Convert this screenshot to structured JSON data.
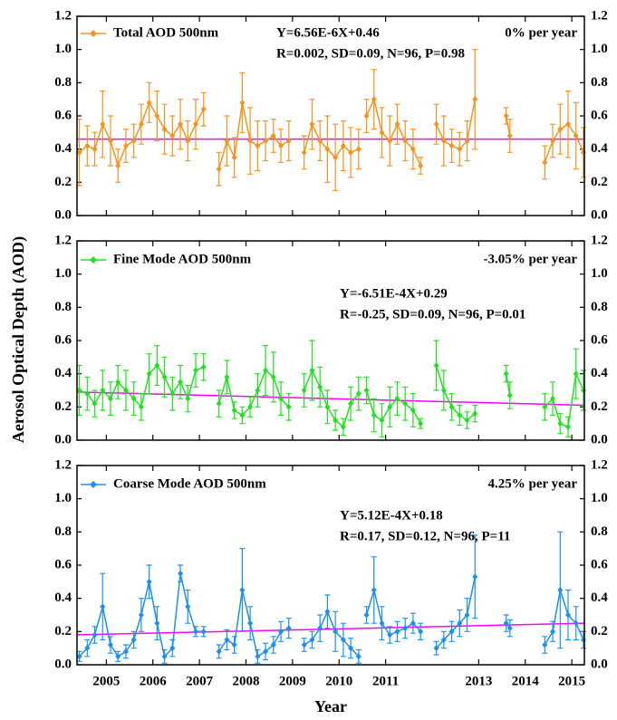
{
  "chart_data": [
    {
      "type": "line",
      "series": [
        {
          "name": "Total AOD 500nm",
          "color": "#f7931e",
          "x": [
            2004.92,
            2005.09,
            2005.25,
            2005.42,
            2005.59,
            2005.75,
            2005.92,
            2006.09,
            2006.25,
            2006.42,
            2006.59,
            2006.75,
            2006.92,
            2007.09,
            2007.25,
            2007.42,
            2007.59,
            2007.75,
            2007.92,
            2008.09,
            2008.25,
            2008.42,
            2008.59,
            2008.75,
            2008.92,
            2009.09,
            2009.25,
            2009.42,
            2009.59,
            2009.75,
            2009.92,
            2010.09,
            2010.25,
            2010.42,
            2010.59,
            2010.75,
            2010.92,
            2011.0,
            2011.09,
            2011.25,
            2011.42,
            2011.59,
            2011.75,
            2011.92,
            2012.09,
            2012.25,
            2012.42,
            2012.59,
            2012.75,
            2012.92,
            2013.09,
            2013.25,
            2013.42,
            2013.75,
            2014.09,
            2014.17,
            2014.5,
            2014.92,
            2015.09,
            2015.25,
            2015.42,
            2015.59,
            2015.75
          ],
          "values": [
            0.38,
            0.42,
            0.4,
            0.55,
            0.45,
            0.3,
            0.42,
            0.45,
            0.55,
            0.68,
            0.6,
            0.52,
            0.48,
            0.55,
            0.45,
            0.55,
            0.64,
            null,
            0.28,
            0.45,
            0.35,
            0.68,
            0.45,
            0.42,
            0.45,
            0.48,
            0.42,
            0.45,
            null,
            0.38,
            0.55,
            0.45,
            0.4,
            0.35,
            0.42,
            0.38,
            0.4,
            null,
            0.6,
            0.7,
            0.5,
            0.45,
            0.55,
            0.45,
            0.4,
            0.3,
            null,
            0.55,
            0.45,
            0.42,
            0.4,
            0.45,
            0.7,
            null,
            0.6,
            0.48,
            null,
            0.32,
            0.45,
            0.52,
            0.55,
            0.48,
            0.38
          ],
          "errors": [
            0.2,
            0.12,
            0.1,
            0.2,
            0.15,
            0.1,
            0.1,
            0.1,
            0.12,
            0.12,
            0.15,
            0.15,
            0.12,
            0.15,
            0.12,
            0.15,
            0.1,
            null,
            0.1,
            0.15,
            0.12,
            0.18,
            0.2,
            0.15,
            0.12,
            0.1,
            0.1,
            0.12,
            null,
            0.1,
            0.15,
            0.12,
            0.2,
            0.2,
            0.15,
            0.15,
            0.12,
            null,
            0.1,
            0.18,
            0.15,
            0.15,
            0.12,
            0.12,
            0.12,
            0.05,
            null,
            0.12,
            0.15,
            0.1,
            0.1,
            0.12,
            0.3,
            null,
            0.05,
            0.1,
            null,
            0.1,
            0.1,
            0.15,
            0.2,
            0.2,
            0.15
          ]
        }
      ],
      "trend": {
        "color": "#ff00ff",
        "x": [
          2004.87,
          2015.77
        ],
        "values": [
          0.46,
          0.46
        ]
      },
      "equation": "Y=6.56E-6X+0.46",
      "stats": "R=0.002, SD=0.09, N=96, P=0.98",
      "rate": "0% per year",
      "xlim": [
        2004.87,
        2015.77
      ],
      "ylim": [
        0,
        1.2
      ],
      "yticks": [
        {
          "value": 0,
          "label": "0.0"
        },
        0.2,
        0.4,
        0.6,
        0.8,
        {
          "value": 1,
          "label": "1.0"
        },
        1.2
      ]
    },
    {
      "type": "line",
      "ylabel": "Aerosol Optical Depth (AOD)",
      "series": [
        {
          "name": "Fine Mode AOD 500nm",
          "color": "#22e022",
          "x": [
            2004.92,
            2005.09,
            2005.25,
            2005.42,
            2005.59,
            2005.75,
            2005.92,
            2006.09,
            2006.25,
            2006.42,
            2006.59,
            2006.75,
            2006.92,
            2007.09,
            2007.25,
            2007.42,
            2007.59,
            2007.75,
            2007.92,
            2008.09,
            2008.25,
            2008.42,
            2008.59,
            2008.75,
            2008.92,
            2009.09,
            2009.25,
            2009.42,
            2009.59,
            2009.75,
            2009.92,
            2010.09,
            2010.25,
            2010.42,
            2010.59,
            2010.75,
            2010.92,
            2011.0,
            2011.09,
            2011.25,
            2011.42,
            2011.59,
            2011.75,
            2011.92,
            2012.09,
            2012.25,
            2012.42,
            2012.59,
            2012.75,
            2012.92,
            2013.09,
            2013.25,
            2013.42,
            2013.75,
            2014.09,
            2014.17,
            2014.5,
            2014.92,
            2015.09,
            2015.25,
            2015.42,
            2015.59,
            2015.75
          ],
          "values": [
            0.3,
            0.28,
            0.22,
            0.3,
            0.25,
            0.35,
            0.3,
            0.25,
            0.2,
            0.4,
            0.45,
            0.38,
            0.28,
            0.35,
            0.25,
            0.42,
            0.44,
            null,
            0.22,
            0.38,
            0.18,
            0.15,
            0.2,
            0.3,
            0.42,
            0.38,
            0.25,
            0.2,
            null,
            0.3,
            0.42,
            0.32,
            0.2,
            0.12,
            0.08,
            0.22,
            0.28,
            null,
            0.3,
            0.15,
            0.12,
            0.2,
            0.25,
            0.22,
            0.18,
            0.1,
            null,
            0.45,
            0.3,
            0.2,
            0.15,
            0.12,
            0.16,
            null,
            0.4,
            0.27,
            null,
            0.2,
            0.25,
            0.1,
            0.08,
            0.4,
            0.3
          ],
          "errors": [
            0.15,
            0.1,
            0.08,
            0.12,
            0.1,
            0.1,
            0.12,
            0.1,
            0.08,
            0.12,
            0.12,
            0.12,
            0.1,
            0.1,
            0.08,
            0.1,
            0.08,
            null,
            0.08,
            0.1,
            0.05,
            0.05,
            0.06,
            0.1,
            0.15,
            0.15,
            0.1,
            0.08,
            null,
            0.1,
            0.18,
            0.12,
            0.1,
            0.06,
            0.05,
            0.1,
            0.1,
            null,
            0.08,
            0.1,
            0.1,
            0.12,
            0.1,
            0.1,
            0.1,
            0.03,
            null,
            0.15,
            0.12,
            0.08,
            0.06,
            0.05,
            0.05,
            null,
            0.05,
            0.08,
            null,
            0.08,
            0.1,
            0.06,
            0.06,
            0.15,
            0.12
          ]
        }
      ],
      "trend": {
        "color": "#ff00ff",
        "x": [
          2004.87,
          2015.77
        ],
        "values": [
          0.29,
          0.21
        ]
      },
      "equation": "Y=-6.51E-4X+0.29",
      "stats": "R=-0.25, SD=0.09, N=96, P=0.01",
      "rate": "-3.05% per year",
      "xlim": [
        2004.87,
        2015.77
      ],
      "ylim": [
        0,
        1.2
      ],
      "yticks": [
        {
          "value": 0,
          "label": "0.0"
        },
        0.2,
        0.4,
        0.6,
        0.8,
        {
          "value": 1,
          "label": "1.0"
        },
        1.2
      ]
    },
    {
      "type": "line",
      "xlabel": "Year",
      "series": [
        {
          "name": "Coarse Mode AOD 500nm",
          "color": "#1e8fef",
          "x": [
            2004.92,
            2005.09,
            2005.25,
            2005.42,
            2005.59,
            2005.75,
            2005.92,
            2006.09,
            2006.25,
            2006.42,
            2006.59,
            2006.75,
            2006.92,
            2007.09,
            2007.25,
            2007.42,
            2007.59,
            2007.75,
            2007.92,
            2008.09,
            2008.25,
            2008.42,
            2008.59,
            2008.75,
            2008.92,
            2009.09,
            2009.25,
            2009.42,
            2009.59,
            2009.75,
            2009.92,
            2010.09,
            2010.25,
            2010.42,
            2010.59,
            2010.75,
            2010.92,
            2011.0,
            2011.09,
            2011.25,
            2011.42,
            2011.59,
            2011.75,
            2011.92,
            2012.09,
            2012.25,
            2012.42,
            2012.59,
            2012.75,
            2012.92,
            2013.09,
            2013.25,
            2013.42,
            2013.75,
            2014.09,
            2014.17,
            2014.5,
            2014.92,
            2015.09,
            2015.25,
            2015.42,
            2015.59,
            2015.75
          ],
          "values": [
            0.05,
            0.1,
            0.18,
            0.35,
            0.12,
            0.05,
            0.08,
            0.15,
            0.3,
            0.5,
            0.25,
            0.05,
            0.1,
            0.55,
            0.35,
            0.2,
            0.2,
            null,
            0.08,
            0.15,
            0.12,
            0.45,
            0.25,
            0.05,
            0.08,
            0.12,
            0.2,
            0.22,
            null,
            0.12,
            0.15,
            0.22,
            0.32,
            0.2,
            0.15,
            0.1,
            0.05,
            null,
            0.3,
            0.45,
            0.25,
            0.18,
            0.2,
            0.22,
            0.25,
            0.2,
            null,
            0.1,
            0.15,
            0.2,
            0.25,
            0.3,
            0.53,
            null,
            0.25,
            0.22,
            null,
            0.12,
            0.2,
            0.45,
            0.3,
            0.25,
            0.15
          ],
          "errors": [
            0.03,
            0.05,
            0.05,
            0.2,
            0.05,
            0.03,
            0.04,
            0.05,
            0.1,
            0.1,
            0.1,
            0.04,
            0.05,
            0.05,
            0.1,
            0.03,
            0.03,
            null,
            0.04,
            0.06,
            0.05,
            0.25,
            0.1,
            0.04,
            0.05,
            0.05,
            0.06,
            0.06,
            null,
            0.04,
            0.05,
            0.08,
            0.1,
            0.12,
            0.1,
            0.06,
            0.04,
            null,
            0.05,
            0.2,
            0.1,
            0.05,
            0.06,
            0.06,
            0.06,
            0.05,
            null,
            0.04,
            0.05,
            0.06,
            0.08,
            0.1,
            0.25,
            null,
            0.05,
            0.05,
            null,
            0.05,
            0.06,
            0.35,
            0.15,
            0.1,
            0.05
          ]
        }
      ],
      "trend": {
        "color": "#ff00ff",
        "x": [
          2004.87,
          2015.77
        ],
        "values": [
          0.18,
          0.25
        ]
      },
      "equation": "Y=5.12E-4X+0.18",
      "stats": "R=0.17, SD=0.12, N=96, P=11",
      "rate": "4.25% per year",
      "xlim": [
        2004.87,
        2015.77
      ],
      "ylim": [
        0,
        1.2
      ],
      "yticks": [
        {
          "value": 0,
          "label": "0.0"
        },
        0.2,
        0.4,
        0.6,
        0.8,
        {
          "value": 1,
          "label": "1.0"
        },
        1.2
      ],
      "xticks": [
        {
          "value": 2005.5,
          "label": "2005"
        },
        {
          "value": 2006.5,
          "label": "2006"
        },
        {
          "value": 2007.5,
          "label": "2007"
        },
        {
          "value": 2008.5,
          "label": "2008"
        },
        {
          "value": 2009.5,
          "label": "2009"
        },
        {
          "value": 2010.5,
          "label": "2010"
        },
        {
          "value": 2011.5,
          "label": "2011"
        },
        {
          "value": 2013.5,
          "label": "2013"
        },
        {
          "value": 2014.5,
          "label": "2014"
        },
        {
          "value": 2015.5,
          "label": "2015"
        }
      ]
    }
  ]
}
